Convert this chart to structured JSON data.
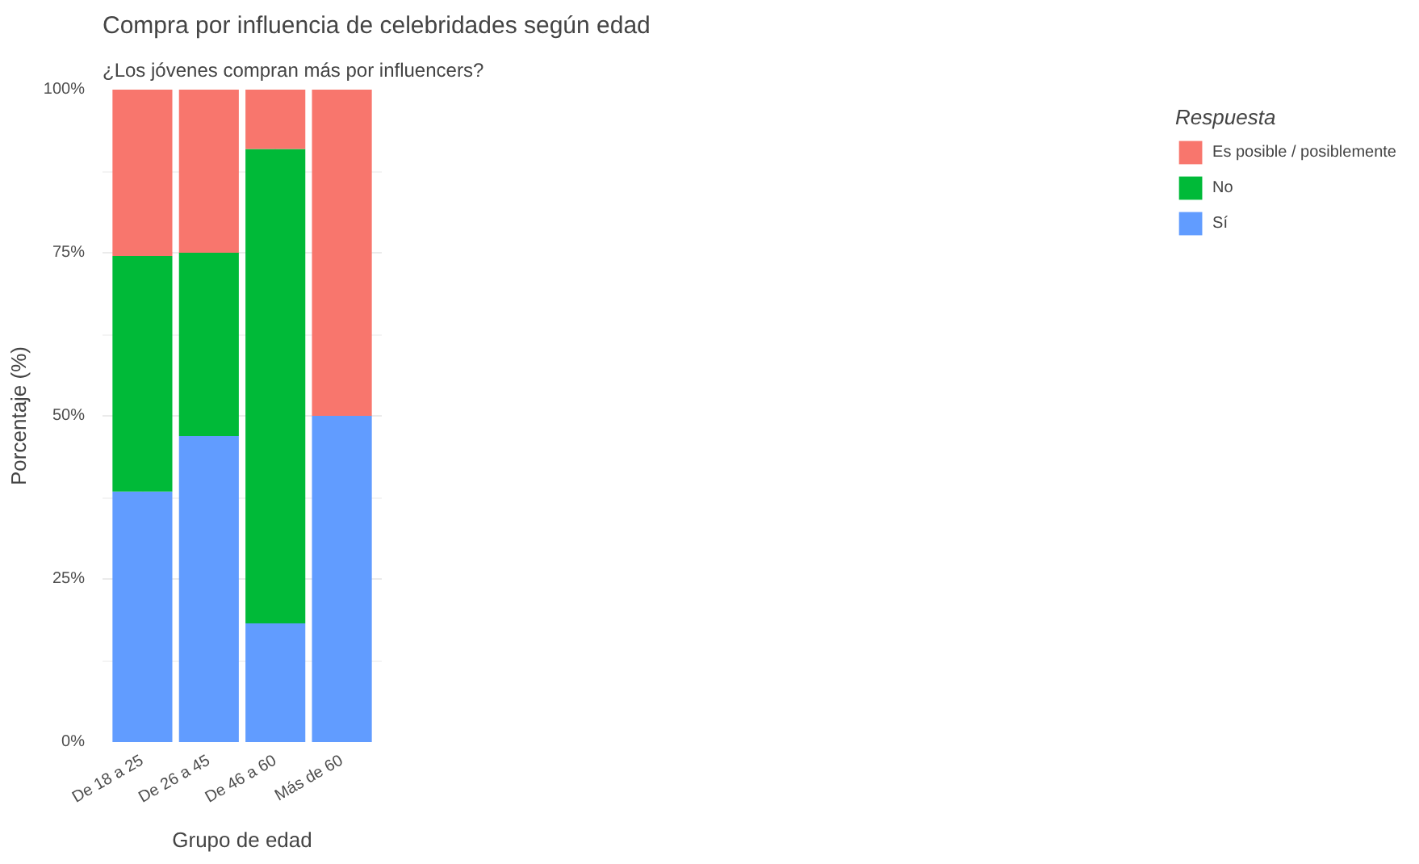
{
  "chart_data": {
    "type": "bar",
    "stacked": true,
    "title": "Compra por influencia de celebridades según edad",
    "subtitle": "¿Los jóvenes compran más por influencers?",
    "xlabel": "Grupo de edad",
    "ylabel": "Porcentaje (%)",
    "legend_title": "Respuesta",
    "categories": [
      "De 18 a 25",
      "De 26 a 45",
      "De 46 a 60",
      "Más de 60"
    ],
    "series": [
      {
        "name": "Sí",
        "color": "#619cff",
        "values": [
          38.4,
          46.9,
          18.2,
          50
        ]
      },
      {
        "name": "No",
        "color": "#00ba38",
        "values": [
          36.1,
          28.1,
          72.7,
          0
        ]
      },
      {
        "name": "Es posible / posiblemente",
        "color": "#f8766d",
        "values": [
          25.5,
          25.0,
          9.1,
          50
        ]
      }
    ],
    "ylim": [
      0,
      100
    ],
    "yticks": [
      {
        "value": 0,
        "label": "0%"
      },
      {
        "value": 25,
        "label": "25%"
      },
      {
        "value": 50,
        "label": "50%"
      },
      {
        "value": 75,
        "label": "75%"
      },
      {
        "value": 100,
        "label": "100%"
      }
    ],
    "grid": true,
    "legend": "right"
  }
}
